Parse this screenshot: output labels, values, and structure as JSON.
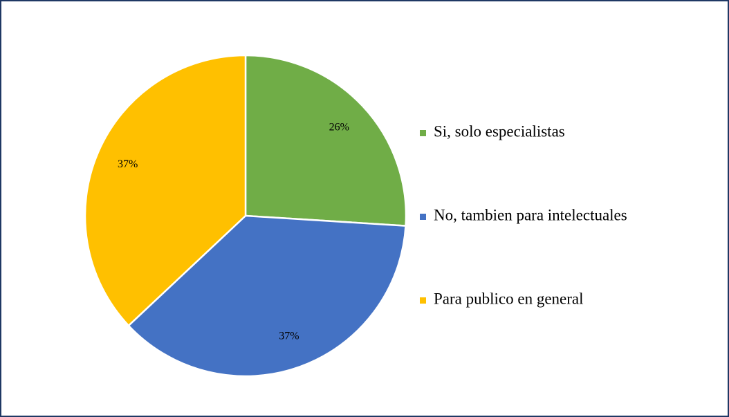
{
  "chart_data": {
    "type": "pie",
    "categories": [
      "Si, solo especialistas",
      "No, tambien para intelectuales",
      "Para publico en general"
    ],
    "values": [
      26,
      37,
      37
    ],
    "value_labels": [
      "26%",
      "37%",
      "37%"
    ],
    "colors": [
      "#70ad47",
      "#4472c4",
      "#ffc000"
    ],
    "legend": "right"
  }
}
